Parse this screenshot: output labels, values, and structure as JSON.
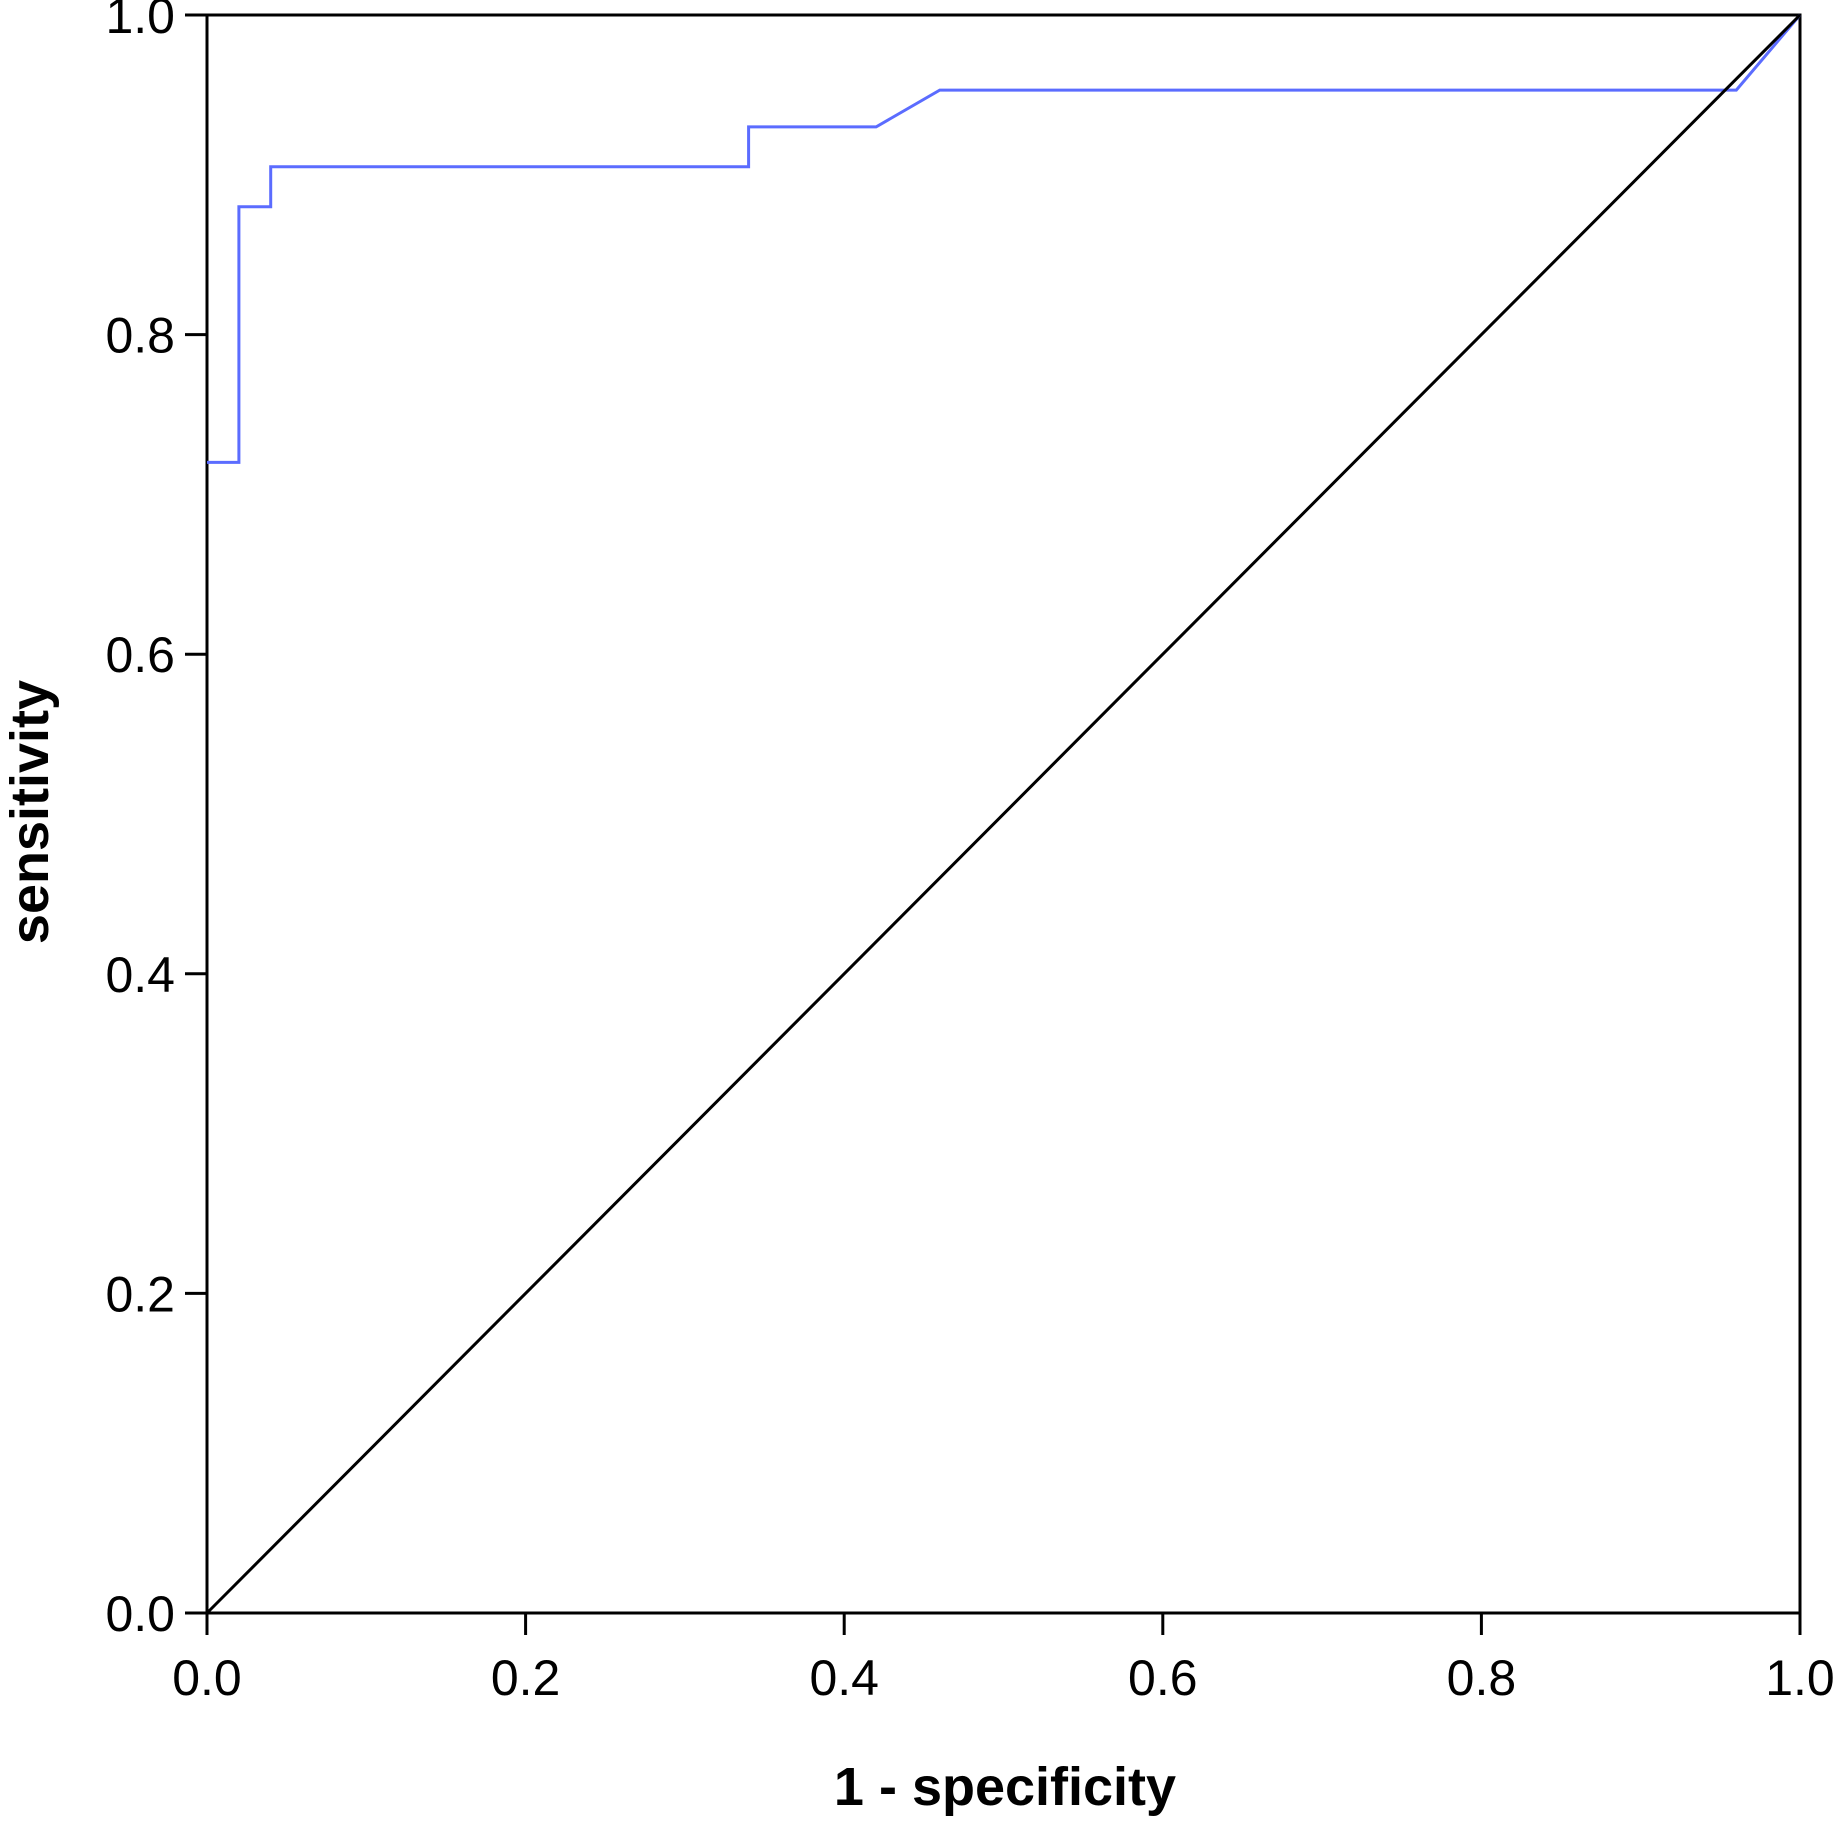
{
  "chart_data": {
    "type": "line",
    "title": "",
    "xlabel": "1 - specificity",
    "ylabel": "sensitivity",
    "xlim": [
      0.0,
      1.0
    ],
    "ylim": [
      0.0,
      1.0
    ],
    "x_ticks": [
      "0.0",
      "0.2",
      "0.4",
      "0.6",
      "0.8",
      "1.0"
    ],
    "y_ticks": [
      "0.0",
      "0.2",
      "0.4",
      "0.6",
      "0.8",
      "1.0"
    ],
    "grid": false,
    "legend": "none",
    "series": [
      {
        "color": "#5b6cff",
        "step": true,
        "x": [
          0.0,
          0.02,
          0.02,
          0.04,
          0.04,
          0.34,
          0.34,
          0.42,
          0.46,
          0.96,
          1.0
        ],
        "y": [
          0.72,
          0.72,
          0.88,
          0.88,
          0.905,
          0.905,
          0.93,
          0.93,
          0.953,
          0.953,
          1.0
        ]
      },
      {
        "color": "#000000",
        "step": false,
        "x": [
          0.0,
          1.0
        ],
        "y": [
          0.0,
          1.0
        ]
      }
    ]
  }
}
